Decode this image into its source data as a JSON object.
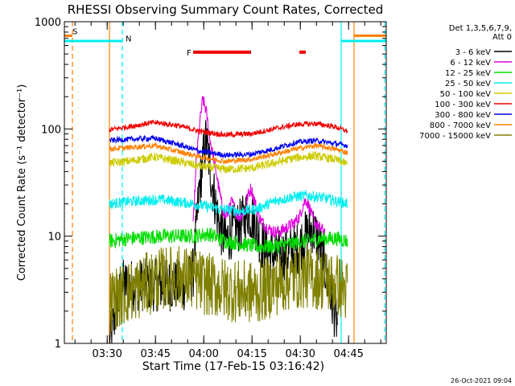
{
  "chart_data": {
    "type": "line",
    "title": "RHESSI Observing Summary Count Rates, Corrected",
    "xlabel": "Start Time (17-Feb-15 03:16:42)",
    "ylabel": "Corrected Count Rate (s⁻¹ detector⁻¹)",
    "yscale": "log",
    "ylim": [
      1,
      1000
    ],
    "xlim_minutes": [
      0,
      100
    ],
    "y_ticks": [
      {
        "value": 1,
        "label": "1"
      },
      {
        "value": 10,
        "label": "10"
      },
      {
        "value": 100,
        "label": "100"
      },
      {
        "value": 1000,
        "label": "1000"
      }
    ],
    "x_ticks": [
      {
        "minute": 13.3,
        "label": "03:30"
      },
      {
        "minute": 28.3,
        "label": "03:45"
      },
      {
        "minute": 43.3,
        "label": "04:00"
      },
      {
        "minute": 58.3,
        "label": "04:15"
      },
      {
        "minute": 73.3,
        "label": "04:30"
      },
      {
        "minute": 88.3,
        "label": "04:45"
      }
    ],
    "legend": {
      "placement": "right",
      "header": [
        "Det 1,3,5,6,7,9,",
        "Att 0"
      ],
      "entries": [
        {
          "label": "3 - 6 keV",
          "color": "#000000"
        },
        {
          "label": "6 - 12 keV",
          "color": "#dd00dd"
        },
        {
          "label": "12 - 25 keV",
          "color": "#00dd00"
        },
        {
          "label": "25 - 50 keV",
          "color": "#00eeee"
        },
        {
          "label": "50 - 100 keV",
          "color": "#cccc00"
        },
        {
          "label": "100 - 300 keV",
          "color": "#ee0000"
        },
        {
          "label": "300 - 800 keV",
          "color": "#0000ee"
        },
        {
          "label": "800 - 7000 keV",
          "color": "#ff8000"
        },
        {
          "label": "7000 - 15000 keV",
          "color": "#808000"
        }
      ]
    },
    "series": [
      {
        "name": "3 - 6 keV",
        "color": "#000000",
        "noise": 0.25,
        "points": [
          [
            14,
            1
          ],
          [
            16,
            2
          ],
          [
            18,
            3.5
          ],
          [
            30,
            3.5
          ],
          [
            38,
            3.5
          ],
          [
            40,
            4.5
          ],
          [
            42,
            30
          ],
          [
            44,
            80
          ],
          [
            46,
            30
          ],
          [
            48,
            13
          ],
          [
            50,
            9
          ],
          [
            52,
            11
          ],
          [
            55,
            13
          ],
          [
            57,
            17
          ],
          [
            59,
            14
          ],
          [
            61,
            9
          ],
          [
            63,
            7
          ],
          [
            66,
            6.5
          ],
          [
            70,
            7
          ],
          [
            73,
            8
          ],
          [
            75,
            10
          ],
          [
            77,
            12
          ],
          [
            79,
            9
          ],
          [
            81,
            5
          ],
          [
            83,
            2.5
          ],
          [
            85,
            1.5
          ]
        ]
      },
      {
        "name": "6 - 12 keV",
        "color": "#dd00dd",
        "noise": 0.06,
        "points": [
          [
            40,
            12
          ],
          [
            41,
            50
          ],
          [
            42,
            110
          ],
          [
            43,
            190
          ],
          [
            44,
            150
          ],
          [
            45,
            90
          ],
          [
            46,
            60
          ],
          [
            47,
            42
          ],
          [
            48,
            28
          ],
          [
            49,
            19
          ],
          [
            50,
            15
          ],
          [
            51,
            17
          ],
          [
            52,
            21
          ],
          [
            53,
            18
          ],
          [
            54,
            15
          ],
          [
            56,
            17
          ],
          [
            57,
            24
          ],
          [
            58,
            28
          ],
          [
            59,
            22
          ],
          [
            60,
            17
          ],
          [
            61,
            14
          ],
          [
            63,
            12
          ],
          [
            65,
            11
          ],
          [
            67,
            11
          ],
          [
            69,
            12
          ],
          [
            71,
            13
          ],
          [
            73,
            15
          ],
          [
            74,
            19
          ],
          [
            75,
            22
          ],
          [
            76,
            19
          ],
          [
            77,
            15
          ],
          [
            79,
            12
          ],
          [
            81,
            11
          ]
        ]
      },
      {
        "name": "12 - 25 keV",
        "color": "#00dd00",
        "noise": 0.07,
        "points": [
          [
            14,
            9
          ],
          [
            20,
            9.5
          ],
          [
            30,
            10
          ],
          [
            40,
            10
          ],
          [
            45,
            10.5
          ],
          [
            50,
            9
          ],
          [
            55,
            8.5
          ],
          [
            60,
            8
          ],
          [
            65,
            8
          ],
          [
            70,
            8.5
          ],
          [
            75,
            9
          ],
          [
            80,
            9.5
          ],
          [
            85,
            9.5
          ],
          [
            88,
            9
          ]
        ]
      },
      {
        "name": "25 - 50 keV",
        "color": "#00eeee",
        "noise": 0.05,
        "points": [
          [
            14,
            20
          ],
          [
            20,
            21
          ],
          [
            30,
            22
          ],
          [
            40,
            20
          ],
          [
            48,
            18
          ],
          [
            55,
            17
          ],
          [
            60,
            18
          ],
          [
            65,
            21
          ],
          [
            70,
            23
          ],
          [
            75,
            24
          ],
          [
            80,
            23
          ],
          [
            85,
            21
          ],
          [
            88,
            20
          ]
        ]
      },
      {
        "name": "50 - 100 keV",
        "color": "#cccc00",
        "noise": 0.04,
        "points": [
          [
            14,
            48
          ],
          [
            20,
            50
          ],
          [
            28,
            55
          ],
          [
            35,
            50
          ],
          [
            42,
            45
          ],
          [
            50,
            42
          ],
          [
            58,
            43
          ],
          [
            65,
            48
          ],
          [
            72,
            54
          ],
          [
            78,
            56
          ],
          [
            84,
            52
          ],
          [
            88,
            47
          ]
        ]
      },
      {
        "name": "100 - 300 keV",
        "color": "#ee0000",
        "noise": 0.025,
        "points": [
          [
            14,
            98
          ],
          [
            20,
            105
          ],
          [
            28,
            115
          ],
          [
            35,
            108
          ],
          [
            42,
            95
          ],
          [
            50,
            88
          ],
          [
            58,
            90
          ],
          [
            65,
            100
          ],
          [
            72,
            110
          ],
          [
            78,
            112
          ],
          [
            84,
            105
          ],
          [
            88,
            95
          ]
        ]
      },
      {
        "name": "300 - 800 keV",
        "color": "#0000ee",
        "noise": 0.025,
        "points": [
          [
            14,
            78
          ],
          [
            20,
            80
          ],
          [
            28,
            82
          ],
          [
            35,
            72
          ],
          [
            42,
            62
          ],
          [
            50,
            57
          ],
          [
            58,
            58
          ],
          [
            65,
            65
          ],
          [
            72,
            75
          ],
          [
            78,
            78
          ],
          [
            84,
            73
          ],
          [
            88,
            70
          ]
        ]
      },
      {
        "name": "800 - 7000 keV",
        "color": "#ff8000",
        "noise": 0.025,
        "points": [
          [
            14,
            65
          ],
          [
            20,
            67
          ],
          [
            28,
            70
          ],
          [
            35,
            62
          ],
          [
            42,
            55
          ],
          [
            50,
            50
          ],
          [
            58,
            52
          ],
          [
            65,
            58
          ],
          [
            72,
            65
          ],
          [
            78,
            70
          ],
          [
            84,
            65
          ],
          [
            88,
            60
          ]
        ]
      },
      {
        "name": "7000 - 15000 keV",
        "color": "#808000",
        "noise": 0.3,
        "points": [
          [
            14,
            2.5
          ],
          [
            20,
            3
          ],
          [
            25,
            3.5
          ],
          [
            30,
            4
          ],
          [
            35,
            4.2
          ],
          [
            40,
            4
          ],
          [
            45,
            3.5
          ],
          [
            50,
            3.2
          ],
          [
            55,
            3
          ],
          [
            60,
            3
          ],
          [
            65,
            3.5
          ],
          [
            70,
            4
          ],
          [
            75,
            4.2
          ],
          [
            80,
            4
          ],
          [
            85,
            3.5
          ],
          [
            88,
            3
          ]
        ]
      }
    ],
    "annotations": [
      {
        "text": "S",
        "color": "#ff8000",
        "minute": 2.5,
        "value": 820,
        "band_start": 0,
        "band_end": 2.5,
        "band_value": 740
      },
      {
        "text": "N",
        "color": "#00eeee",
        "minute": 19,
        "value": 700,
        "band_start": 0,
        "band_end": 18,
        "band_value": 660
      },
      {
        "text": "F",
        "color": "#ee0000",
        "minute": 38,
        "value": 520,
        "flare_intervals": [
          [
            40,
            58
          ],
          [
            73,
            75
          ]
        ],
        "flare_value": 520
      },
      {
        "text": "",
        "color": "#00eeee",
        "band_start": 86,
        "band_end": 100,
        "band_value": 660
      },
      {
        "text": "",
        "color": "#ff8000",
        "band_start": 90,
        "band_end": 100,
        "band_value": 740
      }
    ],
    "vertical_markers": [
      {
        "minute": 2.5,
        "color": "#ff8000",
        "style": "dashed"
      },
      {
        "minute": 18,
        "color": "#00eeee",
        "style": "dashed"
      },
      {
        "minute": 14,
        "color": "#ff8000",
        "style": "solid"
      },
      {
        "minute": 86,
        "color": "#00eeee",
        "style": "solid"
      },
      {
        "minute": 90,
        "color": "#ff8000",
        "style": "solid"
      },
      {
        "minute": 99.5,
        "color": "#00eeee",
        "style": "dashed"
      }
    ]
  },
  "timestamp": "26-Oct-2021 09:04"
}
